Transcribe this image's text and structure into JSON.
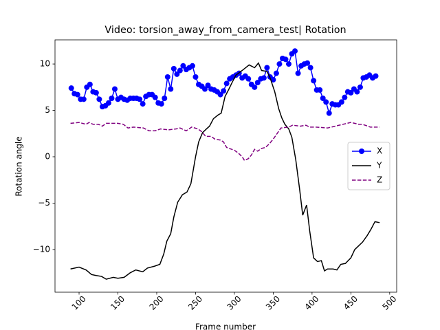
{
  "chart_data": {
    "type": "line",
    "title": "Video: torsion_away_from_camera_test| Rotation",
    "xlabel": "Frame number",
    "ylabel": "Rotation angle",
    "xlim": [
      69,
      509
    ],
    "xticks": [
      100,
      150,
      200,
      250,
      300,
      350,
      400,
      450,
      500
    ],
    "ylim": [
      -14.6,
      12.6
    ],
    "yticks": [
      {
        "value": -10,
        "label": "−10"
      },
      {
        "value": -5,
        "label": "−5"
      },
      0,
      5,
      10
    ],
    "grid": false,
    "legend": "center right",
    "series": [
      {
        "name": "X",
        "color": "#0000ff",
        "marker": "circle",
        "linestyle": "solid",
        "x": [
          90,
          94,
          98,
          102,
          106,
          110,
          114,
          118,
          122,
          126,
          130,
          134,
          138,
          142,
          146,
          150,
          154,
          158,
          162,
          166,
          170,
          174,
          178,
          182,
          186,
          190,
          194,
          198,
          202,
          206,
          210,
          214,
          218,
          222,
          226,
          230,
          234,
          238,
          242,
          246,
          250,
          254,
          258,
          262,
          266,
          270,
          274,
          278,
          282,
          286,
          290,
          294,
          298,
          302,
          306,
          310,
          314,
          318,
          322,
          326,
          330,
          334,
          338,
          342,
          346,
          350,
          354,
          358,
          362,
          366,
          370,
          374,
          378,
          382,
          386,
          390,
          394,
          398,
          402,
          406,
          410,
          414,
          418,
          422,
          426,
          430,
          434,
          438,
          442,
          446,
          450,
          454,
          458,
          462,
          466,
          470,
          474,
          478,
          482
        ],
        "values": [
          7.4,
          6.8,
          6.7,
          6.2,
          6.2,
          7.5,
          7.8,
          7.0,
          6.9,
          6.2,
          5.4,
          5.5,
          5.8,
          6.3,
          7.3,
          6.2,
          6.4,
          6.2,
          6.1,
          6.3,
          6.3,
          6.3,
          6.2,
          5.7,
          6.5,
          6.7,
          6.7,
          6.4,
          5.8,
          5.7,
          6.3,
          8.6,
          7.3,
          9.5,
          8.9,
          9.3,
          9.8,
          9.4,
          9.6,
          9.8,
          8.6,
          7.8,
          7.6,
          7.3,
          7.7,
          7.3,
          7.2,
          7.0,
          6.7,
          7.1,
          7.9,
          8.4,
          8.6,
          8.8,
          9.0,
          8.5,
          8.7,
          8.4,
          7.8,
          7.5,
          8.0,
          8.4,
          8.5,
          9.6,
          8.6,
          8.3,
          9.0,
          10.0,
          10.6,
          10.5,
          10.0,
          11.1,
          11.4,
          9.0,
          9.8,
          10.0,
          10.1,
          9.6,
          8.2,
          7.2,
          7.2,
          6.3,
          5.9,
          4.7,
          5.7,
          5.6,
          5.6,
          5.9,
          6.4,
          7.0,
          6.9,
          7.3,
          7.0,
          7.5,
          8.5,
          8.6,
          8.8,
          8.5,
          8.7
        ]
      },
      {
        "name": "Y",
        "color": "#000000",
        "marker": "none",
        "linestyle": "solid",
        "x": [
          89,
          100,
          109,
          116,
          122,
          129,
          135,
          144,
          150,
          158,
          166,
          173,
          182,
          188,
          197,
          204,
          209,
          213,
          218,
          222,
          227,
          233,
          239,
          244,
          250,
          254,
          259,
          264,
          268,
          273,
          279,
          283,
          288,
          293,
          297,
          302,
          310,
          319,
          326,
          331,
          335,
          342,
          346,
          352,
          357,
          361,
          365,
          370,
          374,
          379,
          384,
          388,
          393,
          397,
          402,
          407,
          412,
          416,
          420,
          427,
          432,
          437,
          443,
          450,
          455,
          460,
          465,
          471,
          476,
          481,
          487
        ],
        "values": [
          -12.1,
          -11.9,
          -12.2,
          -12.7,
          -12.8,
          -12.9,
          -13.2,
          -13.0,
          -13.1,
          -13.0,
          -12.5,
          -12.2,
          -12.4,
          -12.0,
          -11.8,
          -11.6,
          -10.5,
          -9.1,
          -8.3,
          -6.5,
          -4.9,
          -4.1,
          -3.8,
          -2.9,
          0,
          1.6,
          2.6,
          3.0,
          3.3,
          4.1,
          4.5,
          4.7,
          6.5,
          7.3,
          8.0,
          8.8,
          9.3,
          9.9,
          9.6,
          10.1,
          9.3,
          9.2,
          8.5,
          7.0,
          5.2,
          4.2,
          3.5,
          3.0,
          2.1,
          -0.3,
          -3.5,
          -6.3,
          -5.2,
          -8.0,
          -10.9,
          -11.3,
          -11.2,
          -12.3,
          -12.1,
          -12.1,
          -12.2,
          -11.6,
          -11.5,
          -10.9,
          -10.0,
          -9.6,
          -9.2,
          -8.5,
          -7.8,
          -7.0,
          -7.1
        ]
      },
      {
        "name": "Z",
        "color": "#800080",
        "marker": "none",
        "linestyle": "dashed",
        "x": [
          89,
          100,
          109,
          113,
          118,
          125,
          130,
          135,
          150,
          157,
          163,
          170,
          183,
          190,
          198,
          205,
          215,
          225,
          230,
          238,
          245,
          253,
          258,
          263,
          270,
          275,
          282,
          286,
          290,
          300,
          305,
          310,
          313,
          318,
          322,
          326,
          330,
          335,
          340,
          345,
          350,
          355,
          360,
          370,
          375,
          385,
          392,
          397,
          405,
          420,
          430,
          440,
          450,
          460,
          465,
          475,
          487
        ],
        "values": [
          3.6,
          3.7,
          3.5,
          3.7,
          3.5,
          3.5,
          3.3,
          3.6,
          3.6,
          3.5,
          3.1,
          3.2,
          3.1,
          2.8,
          2.8,
          3.0,
          2.9,
          3.0,
          3.1,
          2.8,
          3.2,
          3.0,
          2.7,
          2.2,
          2.2,
          1.9,
          1.8,
          1.6,
          1.0,
          0.7,
          0.4,
          0,
          -0.4,
          -0.2,
          0.2,
          0.8,
          0.6,
          0.9,
          1.0,
          1.4,
          1.9,
          2.5,
          3.1,
          3.2,
          3.4,
          3.3,
          3.4,
          3.2,
          3.2,
          3.1,
          3.3,
          3.5,
          3.7,
          3.5,
          3.5,
          3.2,
          3.2
        ]
      }
    ]
  }
}
